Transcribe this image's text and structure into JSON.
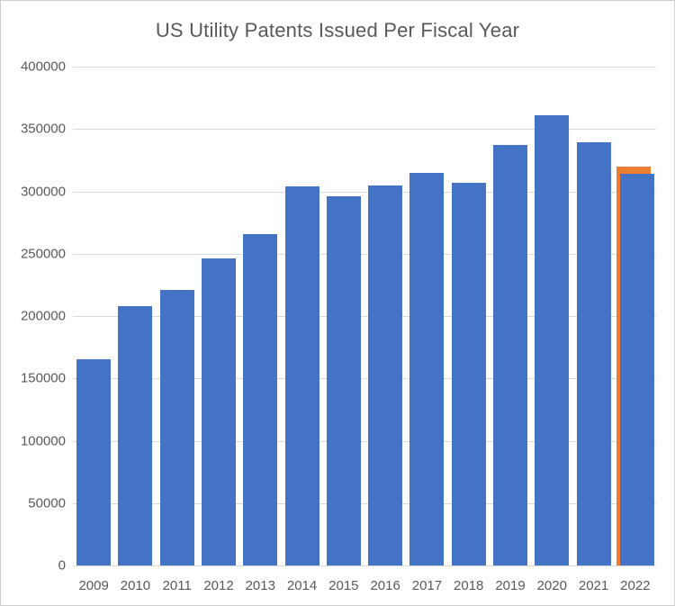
{
  "chart": {
    "title": "US Utility Patents Issued Per Fiscal Year",
    "colors": {
      "bar_blue": "#4472C4",
      "bar_orange": "#ED7D31",
      "gridline": "#D9D9D9",
      "axis_text": "#595959",
      "frame_border": "#D0CECE",
      "background": "#FFFFFF"
    }
  },
  "chart_data": {
    "type": "bar",
    "title": "US Utility Patents Issued Per Fiscal Year",
    "xlabel": "",
    "ylabel": "",
    "categories": [
      "2009",
      "2010",
      "2011",
      "2012",
      "2013",
      "2014",
      "2015",
      "2016",
      "2017",
      "2018",
      "2019",
      "2020",
      "2021",
      "2022"
    ],
    "series": [
      {
        "name": "utility-patents-issued",
        "color": "#4472C4",
        "values": [
          165000,
          208000,
          221000,
          246000,
          266000,
          304000,
          296000,
          305000,
          315000,
          307000,
          337000,
          361000,
          339000,
          314000
        ]
      },
      {
        "name": "fy2022-full-year-estimate",
        "color": "#ED7D31",
        "values": [
          null,
          null,
          null,
          null,
          null,
          null,
          null,
          null,
          null,
          null,
          null,
          null,
          null,
          320000
        ]
      }
    ],
    "ylim": [
      0,
      400000
    ],
    "ytick_interval": 50000,
    "ytick_labels": [
      "0",
      "50000",
      "100000",
      "150000",
      "200000",
      "250000",
      "300000",
      "350000",
      "400000"
    ],
    "grid": true,
    "legend_position": "none"
  }
}
